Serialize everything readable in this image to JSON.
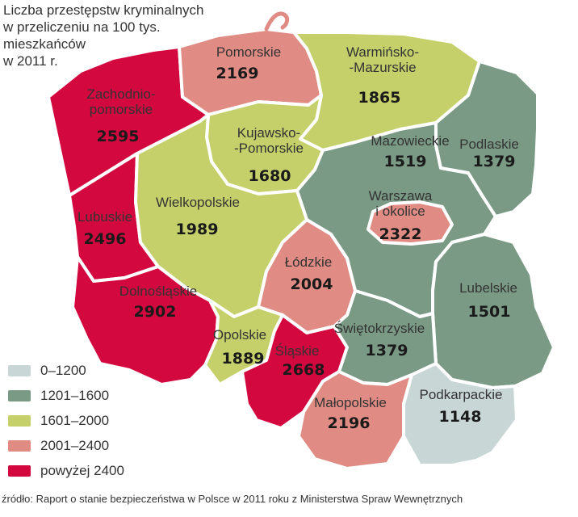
{
  "title": {
    "lines": [
      "Liczba przestępstw kryminalnych",
      "w przeliczeniu na 100 tys.",
      "mieszkańców",
      "w 2011 r."
    ]
  },
  "colors": {
    "0-1200": "#c9d6d6",
    "1201-1600": "#7a9a85",
    "1601-2000": "#c5d06a",
    "2001-2400": "#e08c84",
    "above-2400": "#d3083f"
  },
  "legend": [
    {
      "label": "0–1200",
      "color": "#c9d6d6"
    },
    {
      "label": "1201–1600",
      "color": "#7a9a85"
    },
    {
      "label": "1601–2000",
      "color": "#c5d06a"
    },
    {
      "label": "2001–2400",
      "color": "#e08c84"
    },
    {
      "label": "powyżej 2400",
      "color": "#d3083f"
    }
  ],
  "regions": [
    {
      "id": "zachodniopomorskie",
      "name_lines": [
        "Zachodnio-",
        "pomorskie"
      ],
      "value": "2595",
      "class": "above-2400"
    },
    {
      "id": "pomorskie",
      "name_lines": [
        "Pomorskie"
      ],
      "value": "2169",
      "class": "2001-2400"
    },
    {
      "id": "warminsko-mazurskie",
      "name_lines": [
        "Warmińsko-",
        "-Mazurskie"
      ],
      "value": "1865",
      "class": "1601-2000"
    },
    {
      "id": "kujawsko-pomorskie",
      "name_lines": [
        "Kujawsko-",
        "-Pomorskie"
      ],
      "value": "1680",
      "class": "1601-2000"
    },
    {
      "id": "mazowieckie",
      "name_lines": [
        "Mazowieckie"
      ],
      "value": "1519",
      "class": "1201-1600"
    },
    {
      "id": "podlaskie",
      "name_lines": [
        "Podlaskie"
      ],
      "value": "1379",
      "class": "1201-1600"
    },
    {
      "id": "lubuskie",
      "name_lines": [
        "Lubuskie"
      ],
      "value": "2496",
      "class": "above-2400"
    },
    {
      "id": "wielkopolskie",
      "name_lines": [
        "Wielkopolskie"
      ],
      "value": "1989",
      "class": "1601-2000"
    },
    {
      "id": "warszawa",
      "name_lines": [
        "Warszawa",
        "i okolice"
      ],
      "value": "2322",
      "class": "2001-2400"
    },
    {
      "id": "lodzkie",
      "name_lines": [
        "Łódzkie"
      ],
      "value": "2004",
      "class": "2001-2400"
    },
    {
      "id": "lubelskie",
      "name_lines": [
        "Lubelskie"
      ],
      "value": "1501",
      "class": "1201-1600"
    },
    {
      "id": "dolnoslaskie",
      "name_lines": [
        "Dolnośląskie"
      ],
      "value": "2902",
      "class": "above-2400"
    },
    {
      "id": "opolskie",
      "name_lines": [
        "Opolskie"
      ],
      "value": "1889",
      "class": "1601-2000"
    },
    {
      "id": "slaskie",
      "name_lines": [
        "Śląskie"
      ],
      "value": "2668",
      "class": "above-2400"
    },
    {
      "id": "swietokrzyskie",
      "name_lines": [
        "Świętokrzyskie"
      ],
      "value": "1379",
      "class": "1201-1600"
    },
    {
      "id": "malopolskie",
      "name_lines": [
        "Małopolskie"
      ],
      "value": "2196",
      "class": "2001-2400"
    },
    {
      "id": "podkarpackie",
      "name_lines": [
        "Podkarpackie"
      ],
      "value": "1148",
      "class": "0-1200"
    }
  ],
  "source": "źródło: Raport o stanie bezpieczeństwa w Polsce w 2011 roku z Ministerstwa Spraw Wewnętrznych"
}
